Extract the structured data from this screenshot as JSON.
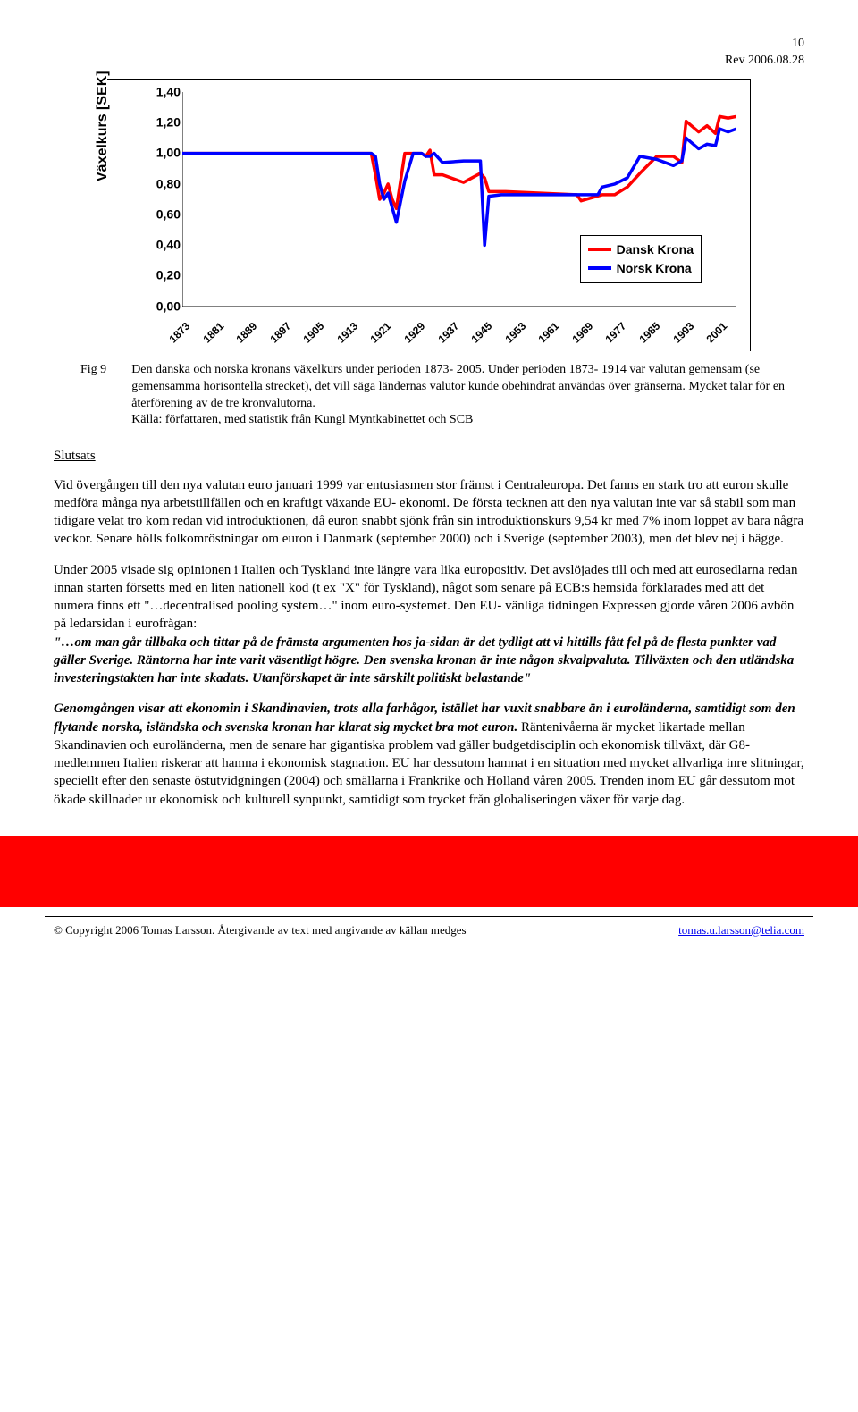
{
  "header": {
    "page_no": "10",
    "rev": "Rev 2006.08.28"
  },
  "chart": {
    "type": "line",
    "ylabel": "Växelkurs [SEK]",
    "ylabel_fontsize": 16,
    "ylim": [
      0.0,
      1.4
    ],
    "ytick_step": 0.2,
    "yticks": [
      "0,00",
      "0,20",
      "0,40",
      "0,60",
      "0,80",
      "1,00",
      "1,20",
      "1,40"
    ],
    "xticks": [
      "1873",
      "1881",
      "1889",
      "1897",
      "1905",
      "1913",
      "1921",
      "1929",
      "1937",
      "1945",
      "1953",
      "1961",
      "1969",
      "1977",
      "1985",
      "1993",
      "2001"
    ],
    "tick_fontsize": 13,
    "background_color": "#ffffff",
    "axis_color": "#000000",
    "line_width": 3.5,
    "legend": {
      "items": [
        {
          "label": "Dansk Krona",
          "color": "#ff0000"
        },
        {
          "label": "Norsk Krona",
          "color": "#0000ff"
        }
      ],
      "position": "inside-lower-right"
    },
    "series": [
      {
        "name": "Dansk Krona",
        "color": "#ff0000",
        "x": [
          1873,
          1918,
          1919,
          1920,
          1921,
          1922,
          1923,
          1924,
          1926,
          1930,
          1931,
          1932,
          1933,
          1935,
          1940,
          1944,
          1945,
          1946,
          1949,
          1950,
          1967,
          1968,
          1973,
          1976,
          1979,
          1982,
          1986,
          1990,
          1992,
          1993,
          1996,
          1998,
          2000,
          2001,
          2003,
          2005
        ],
        "y": [
          1.0,
          1.0,
          0.86,
          0.7,
          0.74,
          0.8,
          0.7,
          0.64,
          1.0,
          1.0,
          0.98,
          1.02,
          0.86,
          0.86,
          0.81,
          0.87,
          0.84,
          0.75,
          0.75,
          0.75,
          0.73,
          0.69,
          0.73,
          0.73,
          0.78,
          0.87,
          0.98,
          0.98,
          0.94,
          1.21,
          1.14,
          1.18,
          1.13,
          1.24,
          1.23,
          1.24
        ]
      },
      {
        "name": "Norsk Krona",
        "color": "#0000ff",
        "x": [
          1873,
          1918,
          1919,
          1920,
          1921,
          1922,
          1924,
          1926,
          1928,
          1930,
          1931,
          1932,
          1933,
          1935,
          1940,
          1944,
          1945,
          1946,
          1949,
          1950,
          1972,
          1973,
          1976,
          1979,
          1982,
          1986,
          1990,
          1992,
          1993,
          1996,
          1998,
          2000,
          2001,
          2003,
          2005
        ],
        "y": [
          1.0,
          1.0,
          0.98,
          0.8,
          0.7,
          0.74,
          0.55,
          0.82,
          1.0,
          1.0,
          0.98,
          0.98,
          1.0,
          0.94,
          0.95,
          0.95,
          0.4,
          0.72,
          0.73,
          0.73,
          0.73,
          0.78,
          0.8,
          0.84,
          0.98,
          0.96,
          0.92,
          0.95,
          1.1,
          1.03,
          1.06,
          1.05,
          1.16,
          1.14,
          1.16
        ]
      }
    ]
  },
  "fig": {
    "label": "Fig 9",
    "caption": "Den danska och norska kronans växelkurs under perioden 1873- 2005. Under perioden 1873- 1914 var valutan gemensam (se gemensamma horisontella strecket), det vill säga ländernas valutor kunde obehindrat användas över gränserna. Mycket talar för en återförening av de tre kronvalutorna.",
    "source": "Källa: författaren, med statistik från Kungl Myntkabinettet och SCB"
  },
  "section": {
    "title": "Slutsats"
  },
  "p1": "Vid övergången till den nya valutan euro januari 1999 var entusiasmen stor främst i Centraleuropa. Det fanns en stark tro att euron skulle medföra många nya arbetstillfällen och en kraftigt växande EU- ekonomi. De första tecknen att den nya valutan inte var så stabil som man tidigare velat tro kom redan vid introduktionen, då euron snabbt sjönk från sin introduktionskurs 9,54 kr med 7% inom loppet av bara några veckor. Senare hölls folkomröstningar om euron i Danmark (september 2000) och i Sverige (september 2003), men det blev nej i bägge.",
  "p2": {
    "a": "Under 2005 visade sig opinionen i Italien och Tyskland inte längre vara lika europositiv. Det avslöjades till och med att eurosedlarna redan innan starten försetts med en liten nationell kod (t ex \"X\" för Tyskland), något som senare på ECB:s hemsida förklarades med att det numera finns ett ",
    "b": "\"…decentralised pooling system…\"",
    "c": " inom euro-systemet. Den EU- vänliga tidningen Expressen gjorde våren 2006 avbön på ledarsidan i eurofrågan:",
    "q": "\"…om man går tillbaka och tittar på de främsta argumenten hos ja-sidan är det tydligt att vi hittills fått fel på de flesta punkter vad gäller Sverige. Räntorna har inte varit väsentligt högre. Den svenska kronan är inte någon skvalpvaluta. Tillväxten och den utländska investeringstakten har inte skadats. Utanförskapet är inte särskilt politiskt belastande\""
  },
  "p3": {
    "a": "Genomgången visar att ekonomin i Skandinavien, trots alla farhågor, istället har vuxit snabbare än i euroländerna, samtidigt som den flytande norska, isländska och svenska kronan har klarat sig mycket bra mot euron.",
    "b": " Räntenivåerna är mycket likartade mellan Skandinavien och euroländerna, men de senare har gigantiska problem vad gäller budgetdisciplin och ekonomisk tillväxt, där G8- medlemmen Italien riskerar att hamna i ekonomisk stagnation. EU har dessutom hamnat i en situation med mycket allvarliga inre slitningar, speciellt efter den senaste östutvidgningen (2004) och smällarna i Frankrike och Holland våren 2005. Trenden inom EU går dessutom mot ökade skillnader ur ekonomisk och kulturell synpunkt, samtidigt som trycket från globaliseringen växer för varje dag."
  },
  "footer": {
    "left": "© Copyright 2006 Tomas Larsson. Återgivande av text med angivande av källan medges",
    "email": "tomas.u.larsson@telia.com"
  },
  "colors": {
    "red": "#ff0000",
    "blue": "#0000ff",
    "link": "#0000ee"
  }
}
